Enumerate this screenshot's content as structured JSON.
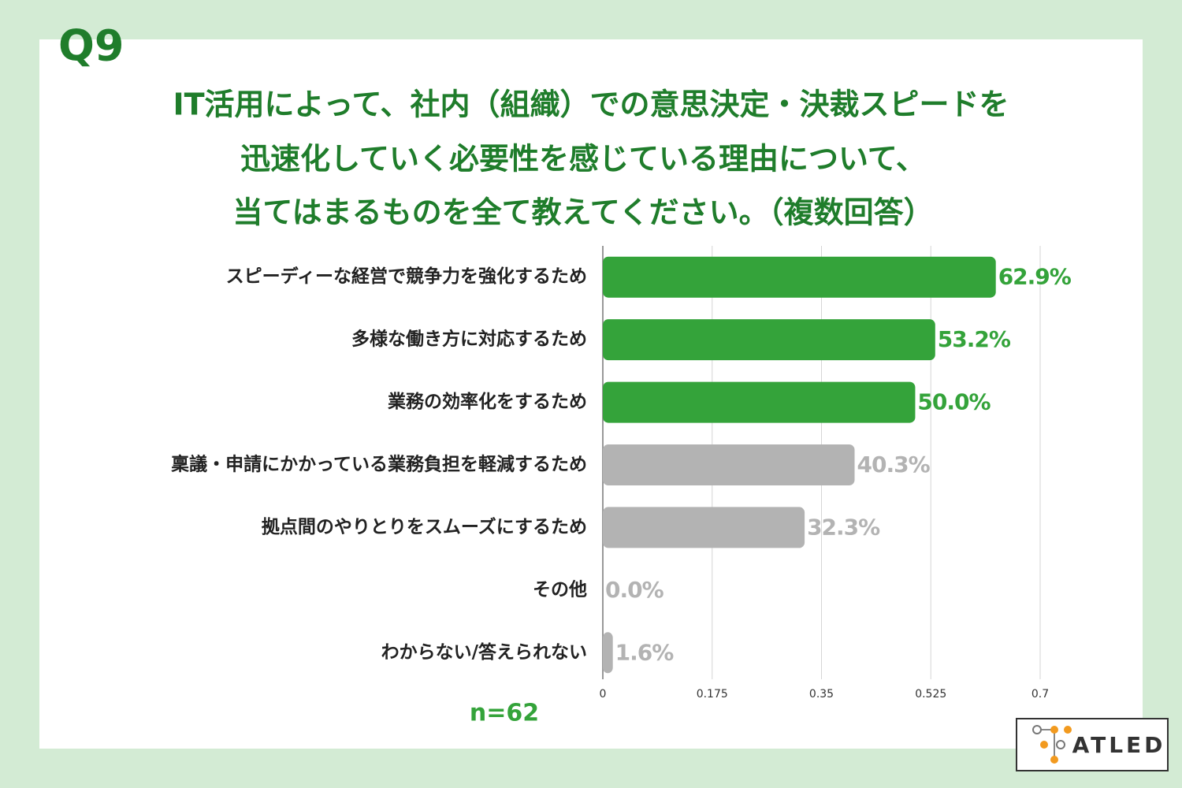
{
  "chart_data": {
    "type": "bar",
    "orientation": "horizontal",
    "question": "Q9",
    "title": [
      "IT活用によって、社内（組織）での意思決定・決裁スピードを",
      "迅速化していく必要性を感じている理由について、",
      "当てはまるものを全て教えてください。（複数回答）"
    ],
    "categories": [
      "スピーディーな経営で競争力を強化するため",
      "多様な働き方に対応するため",
      "業務の効率化をするため",
      "稟議・申請にかかっている業務負担を軽減するため",
      "拠点間のやりとりをスムーズにするため",
      "その他",
      "わからない/答えられない"
    ],
    "values": [
      0.629,
      0.532,
      0.5,
      0.403,
      0.323,
      0.0,
      0.016
    ],
    "value_labels": [
      "62.9%",
      "53.2%",
      "50.0%",
      "40.3%",
      "32.3%",
      "0.0%",
      "1.6%"
    ],
    "colors": [
      "#34a33a",
      "#34a33a",
      "#34a33a",
      "#b3b3b3",
      "#b3b3b3",
      "#b3b3b3",
      "#b3b3b3"
    ],
    "xlim": [
      0,
      0.7
    ],
    "xticks": [
      0,
      0.175,
      0.35,
      0.525,
      0.7
    ],
    "grid": true,
    "note": "n=62",
    "logo": "ATLED"
  }
}
